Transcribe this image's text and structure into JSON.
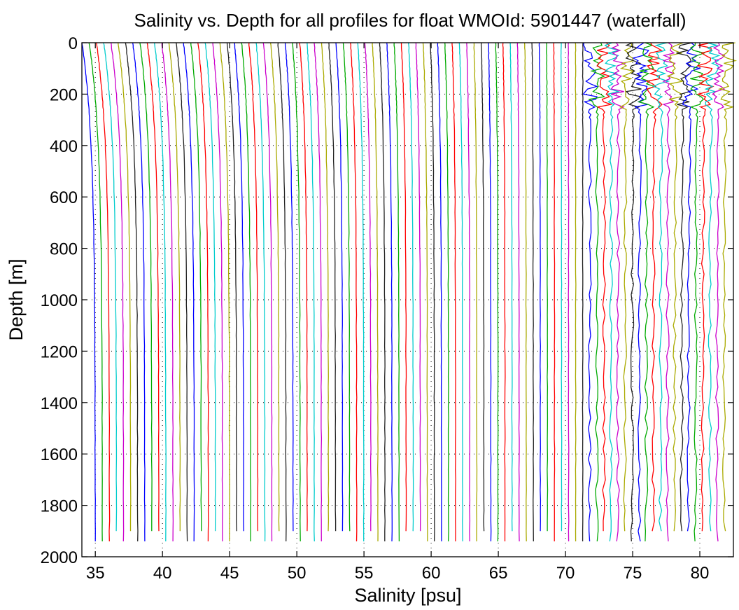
{
  "chart_data": {
    "type": "line",
    "title": "Salinity vs. Depth for all profiles for float WMOId: 5901447 (waterfall)",
    "xlabel": "Salinity [psu]",
    "ylabel": "Depth [m]",
    "xlim": [
      34,
      82.5
    ],
    "ylim": [
      0,
      2000
    ],
    "y_reversed": true,
    "grid": "dotted",
    "x_ticks": [
      35,
      40,
      45,
      50,
      55,
      60,
      65,
      70,
      75,
      80
    ],
    "y_ticks": [
      0,
      200,
      400,
      600,
      800,
      1000,
      1200,
      1400,
      1600,
      1800,
      2000
    ],
    "waterfall": {
      "profile_count": 90,
      "first_deep_salinity": 35.0,
      "last_deep_salinity": 81.8,
      "surface_offset_start": -1.0,
      "surface_offset_end": 0.3,
      "thermocline_depth": 350,
      "typical_max_depth": 1915
    },
    "series_colors": [
      "#0000ff",
      "#00aa00",
      "#ff0000",
      "#00cccc",
      "#cc00cc",
      "#aaaa00",
      "#222222"
    ]
  }
}
